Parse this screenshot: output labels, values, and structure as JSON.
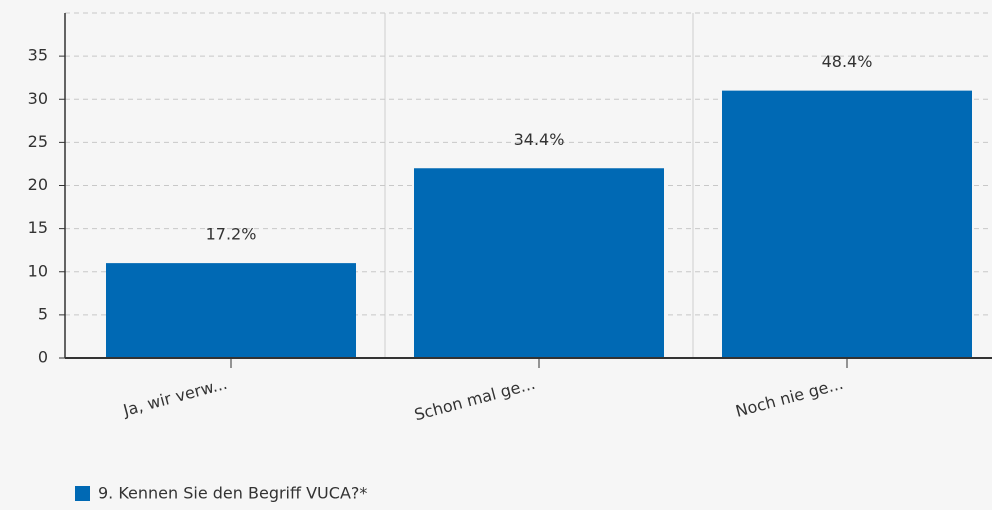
{
  "chart_data": {
    "type": "bar",
    "categories": [
      "Ja, wir verw...",
      "Schon mal ge...",
      "Noch nie ge..."
    ],
    "series": [
      {
        "name": "9. Kennen Sie den Begriff VUCA?*",
        "color": "#0069b4",
        "values": [
          11,
          22,
          31
        ],
        "value_labels": [
          "17.2%",
          "34.4%",
          "48.4%"
        ]
      }
    ],
    "ylim": [
      0,
      40
    ],
    "yticks": [
      0,
      5,
      10,
      15,
      20,
      25,
      30,
      35
    ],
    "grid": true
  }
}
